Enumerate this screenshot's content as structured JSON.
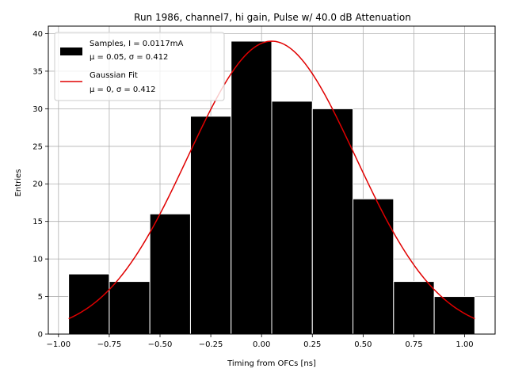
{
  "chart_data": {
    "type": "bar",
    "title": "Run 1986, channel7, hi gain, Pulse w/ 40.0 dB Attenuation",
    "xlabel": "Timing from OFCs [ns]",
    "ylabel": "Entries",
    "xlim": [
      -1.05,
      1.15
    ],
    "ylim": [
      0,
      41
    ],
    "xticks": [
      "−1.00",
      "−0.75",
      "−0.50",
      "−0.25",
      "0.00",
      "0.25",
      "0.50",
      "0.75",
      "1.00"
    ],
    "xtick_values": [
      -1.0,
      -0.75,
      -0.5,
      -0.25,
      0.0,
      0.25,
      0.5,
      0.75,
      1.0
    ],
    "yticks": [
      "0",
      "5",
      "10",
      "15",
      "20",
      "25",
      "30",
      "35",
      "40"
    ],
    "ytick_values": [
      0,
      5,
      10,
      15,
      20,
      25,
      30,
      35,
      40
    ],
    "grid": true,
    "legend_position": "top-left",
    "histogram": {
      "name_line1": "Samples, I = 0.0117mA",
      "name_line2": "μ = 0.05, σ = 0.412",
      "color": "#000000",
      "edge_color": "#ffffff",
      "bin_edges": [
        -0.95,
        -0.75,
        -0.55,
        -0.35,
        -0.15,
        0.05,
        0.25,
        0.45,
        0.65,
        0.85,
        1.05
      ],
      "counts": [
        8,
        7,
        16,
        29,
        39,
        31,
        30,
        18,
        7,
        5
      ]
    },
    "fit": {
      "name_line1": "Gaussian Fit",
      "name_line2": "μ = 0, σ = 0.412",
      "color": "#e00000",
      "mu": 0.05,
      "sigma": 0.412,
      "amplitude": 39,
      "x_range": [
        -0.95,
        1.05
      ]
    }
  }
}
